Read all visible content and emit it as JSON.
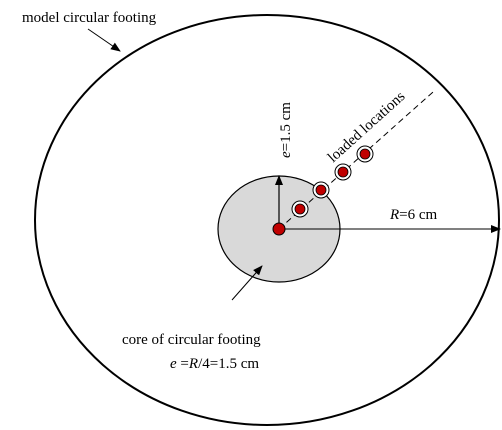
{
  "labels": {
    "model_footing": "model circular footing",
    "loaded_locations": "loaded locations",
    "core_footing": "core of circular footing",
    "e_value_prefix": "e",
    "e_value_suffix": "=1.5 cm",
    "radius_prefix": "R",
    "radius_suffix": "=6 cm",
    "e_formula_e": "e",
    "e_formula_eq": " =",
    "e_formula_R": "R",
    "e_formula_rest": "/4=1.5 cm"
  },
  "colors": {
    "outline": "#000000",
    "core_fill": "#d9d9d9",
    "load_point": "#c00000"
  },
  "dimensions": {
    "R_cm": 6,
    "e_cm": 1.5
  },
  "load_points_count": 5
}
